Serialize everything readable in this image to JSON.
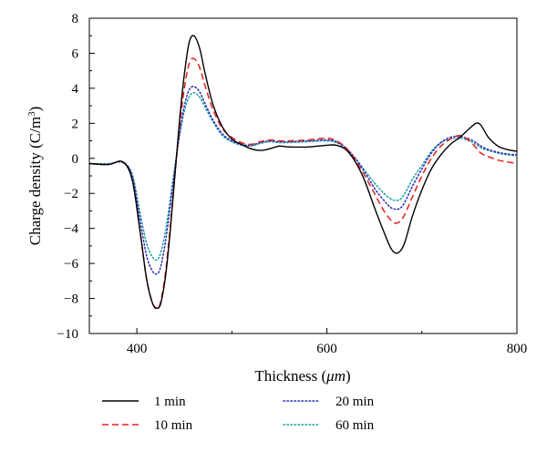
{
  "chart_data": {
    "type": "line",
    "xlabel_prefix": "Thickness (",
    "xlabel_unit": "μm",
    "xlabel_suffix": ")",
    "ylabel_prefix": "Charge density (C/m",
    "ylabel_sup": "3",
    "ylabel_suffix": ")",
    "xlim": [
      350,
      800
    ],
    "ylim": [
      -10,
      8
    ],
    "xticks": [
      400,
      600,
      800
    ],
    "xtick_labels": [
      "400",
      "600",
      "800"
    ],
    "yticks": [
      -10,
      -8,
      -6,
      -4,
      -2,
      0,
      2,
      4,
      6,
      8
    ],
    "ytick_labels": [
      "−10",
      "−8",
      "−6",
      "−4",
      "−2",
      "0",
      "2",
      "4",
      "6",
      "8"
    ],
    "grid": false,
    "legend_position": "bottom",
    "series": [
      {
        "name": "1 min",
        "color": "#000000",
        "dash": "solid",
        "x": [
          350,
          370,
          385,
          395,
          403,
          410,
          416,
          421,
          425,
          430,
          435,
          440,
          445,
          450,
          455,
          460,
          466,
          472,
          480,
          490,
          500,
          510,
          520,
          530,
          540,
          550,
          560,
          580,
          600,
          610,
          620,
          630,
          640,
          650,
          660,
          667,
          672,
          677,
          682,
          690,
          700,
          710,
          720,
          730,
          740,
          750,
          757,
          762,
          770,
          780,
          790,
          800
        ],
        "y": [
          -0.3,
          -0.35,
          -0.2,
          -1.2,
          -4.0,
          -6.8,
          -8.2,
          -8.55,
          -8.3,
          -6.8,
          -4.2,
          -1.0,
          2.2,
          4.8,
          6.6,
          7.0,
          6.3,
          4.8,
          3.1,
          1.8,
          1.1,
          0.8,
          0.55,
          0.45,
          0.55,
          0.7,
          0.65,
          0.65,
          0.75,
          0.75,
          0.5,
          -0.2,
          -1.3,
          -2.8,
          -4.2,
          -5.1,
          -5.4,
          -5.3,
          -4.8,
          -3.3,
          -1.8,
          -0.6,
          0.2,
          0.8,
          1.2,
          1.7,
          2.0,
          1.9,
          1.2,
          0.7,
          0.5,
          0.4
        ]
      },
      {
        "name": "10 min",
        "color": "#e0201b",
        "dash": "dashed",
        "x": [
          350,
          370,
          385,
          395,
          403,
          410,
          416,
          421,
          425,
          430,
          435,
          440,
          445,
          450,
          455,
          460,
          466,
          472,
          480,
          490,
          500,
          510,
          520,
          530,
          540,
          550,
          560,
          580,
          600,
          610,
          620,
          630,
          640,
          650,
          660,
          667,
          672,
          677,
          682,
          690,
          700,
          710,
          720,
          730,
          740,
          750,
          757,
          762,
          770,
          780,
          790,
          800
        ],
        "y": [
          -0.3,
          -0.35,
          -0.2,
          -1.2,
          -4.0,
          -6.8,
          -8.2,
          -8.6,
          -8.2,
          -6.6,
          -4.0,
          -1.0,
          1.8,
          4.0,
          5.4,
          5.7,
          5.2,
          4.1,
          2.8,
          1.7,
          1.2,
          0.9,
          0.8,
          0.95,
          1.05,
          1.0,
          1.0,
          1.05,
          1.15,
          1.0,
          0.6,
          -0.1,
          -1.0,
          -2.0,
          -3.0,
          -3.5,
          -3.7,
          -3.6,
          -3.2,
          -2.2,
          -1.0,
          0.0,
          0.7,
          1.1,
          1.3,
          1.0,
          0.6,
          0.3,
          0.1,
          -0.1,
          -0.2,
          -0.3
        ]
      },
      {
        "name": "20 min",
        "color": "#2b2bb8",
        "dash": "dotted",
        "x": [
          350,
          370,
          385,
          395,
          403,
          410,
          416,
          421,
          425,
          430,
          435,
          440,
          445,
          450,
          455,
          460,
          466,
          472,
          480,
          490,
          500,
          510,
          520,
          530,
          540,
          550,
          560,
          580,
          600,
          610,
          620,
          630,
          640,
          650,
          660,
          667,
          672,
          677,
          682,
          690,
          700,
          710,
          720,
          730,
          740,
          750,
          757,
          762,
          770,
          780,
          790,
          800
        ],
        "y": [
          -0.3,
          -0.35,
          -0.2,
          -1.0,
          -3.4,
          -5.5,
          -6.4,
          -6.6,
          -6.2,
          -4.8,
          -2.8,
          -0.6,
          1.4,
          3.0,
          3.9,
          4.1,
          3.8,
          3.1,
          2.2,
          1.4,
          1.0,
          0.8,
          0.75,
          0.9,
          1.0,
          0.95,
          0.95,
          1.0,
          1.05,
          0.95,
          0.6,
          0.0,
          -0.8,
          -1.7,
          -2.4,
          -2.8,
          -2.9,
          -2.85,
          -2.5,
          -1.6,
          -0.6,
          0.3,
          0.9,
          1.2,
          1.25,
          1.1,
          0.9,
          0.7,
          0.5,
          0.35,
          0.25,
          0.2
        ]
      },
      {
        "name": "60 min",
        "color": "#1aa0a0",
        "dash": "dotted",
        "x": [
          350,
          370,
          385,
          395,
          403,
          410,
          416,
          421,
          425,
          430,
          435,
          440,
          445,
          450,
          455,
          460,
          466,
          472,
          480,
          490,
          500,
          510,
          520,
          530,
          540,
          550,
          560,
          580,
          600,
          610,
          620,
          630,
          640,
          650,
          660,
          667,
          672,
          677,
          682,
          690,
          700,
          710,
          720,
          730,
          740,
          750,
          757,
          762,
          770,
          780,
          790,
          800
        ],
        "y": [
          -0.3,
          -0.3,
          -0.25,
          -0.9,
          -3.0,
          -4.8,
          -5.6,
          -5.8,
          -5.4,
          -4.2,
          -2.4,
          -0.5,
          1.3,
          2.7,
          3.5,
          3.75,
          3.5,
          2.9,
          2.1,
          1.3,
          0.95,
          0.75,
          0.7,
          0.85,
          0.95,
          0.9,
          0.9,
          0.95,
          1.0,
          0.9,
          0.55,
          0.0,
          -0.7,
          -1.4,
          -2.0,
          -2.3,
          -2.4,
          -2.35,
          -2.0,
          -1.2,
          -0.4,
          0.4,
          0.9,
          1.1,
          1.15,
          1.0,
          0.8,
          0.6,
          0.45,
          0.3,
          0.2,
          0.15
        ]
      }
    ]
  }
}
